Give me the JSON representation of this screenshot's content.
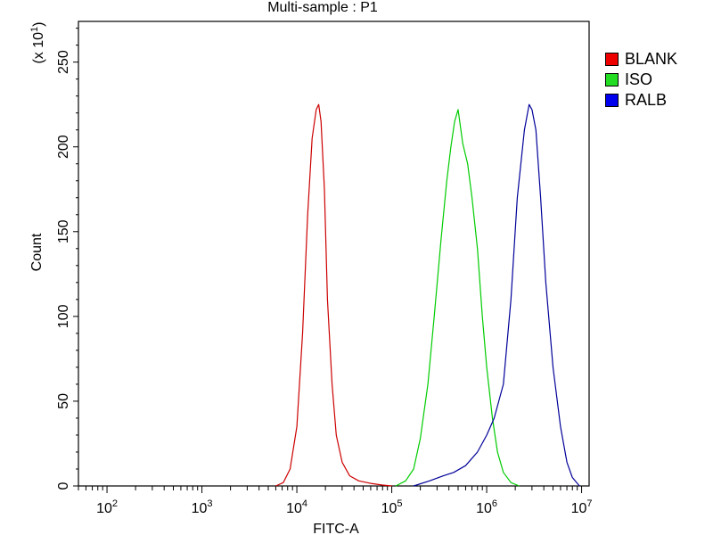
{
  "chart_data": {
    "type": "line",
    "title": "Multi-sample : P1",
    "xlabel": "FITC-A",
    "ylabel": "Count",
    "y_multiplier": "(x 10",
    "y_multiplier_exp": "1",
    "y_multiplier_end": ")",
    "x_scale": "log",
    "xlim": [
      50,
      12000000
    ],
    "ylim": [
      0,
      274
    ],
    "x_ticks": [
      {
        "value": 100,
        "base": "10",
        "exp": "2"
      },
      {
        "value": 1000,
        "base": "10",
        "exp": "3"
      },
      {
        "value": 10000,
        "base": "10",
        "exp": "4"
      },
      {
        "value": 100000,
        "base": "10",
        "exp": "5"
      },
      {
        "value": 1000000,
        "base": "10",
        "exp": "6"
      },
      {
        "value": 10000000,
        "base": "10",
        "exp": "7"
      }
    ],
    "y_ticks": [
      {
        "value": 0,
        "label": "0"
      },
      {
        "value": 50,
        "label": "50"
      },
      {
        "value": 100,
        "label": "100"
      },
      {
        "value": 150,
        "label": "150"
      },
      {
        "value": 200,
        "label": "200"
      },
      {
        "value": 250,
        "label": "250"
      }
    ],
    "grid": false,
    "legend_position": "top-right",
    "series": [
      {
        "name": "BLANK",
        "color": "#cc0000",
        "x": [
          6000,
          7200,
          8500,
          10000,
          11500,
          13000,
          14500,
          16000,
          17000,
          18000,
          19500,
          21000,
          23500,
          26000,
          30000,
          36000,
          45000,
          60000,
          80000,
          100000
        ],
        "y": [
          0,
          2,
          10,
          35,
          90,
          160,
          205,
          222,
          225,
          215,
          175,
          110,
          60,
          30,
          14,
          6,
          3,
          1.5,
          0.5,
          0
        ]
      },
      {
        "name": "ISO",
        "color": "#00cc00",
        "x": [
          110000,
          140000,
          170000,
          200000,
          240000,
          280000,
          330000,
          380000,
          420000,
          460000,
          500000,
          560000,
          630000,
          700000,
          800000,
          900000,
          1000000,
          1150000,
          1300000,
          1500000,
          1800000,
          2200000
        ],
        "y": [
          0,
          3,
          10,
          28,
          60,
          100,
          145,
          180,
          200,
          215,
          222,
          202,
          190,
          170,
          140,
          100,
          70,
          40,
          20,
          8,
          2,
          0
        ]
      },
      {
        "name": "RALB",
        "color": "#000099",
        "x": [
          170000,
          250000,
          350000,
          450000,
          600000,
          800000,
          1000000,
          1200000,
          1500000,
          1800000,
          2100000,
          2500000,
          2800000,
          3000000,
          3300000,
          3700000,
          4200000,
          5000000,
          6000000,
          7000000,
          8000000,
          9500000
        ],
        "y": [
          0,
          3,
          6,
          8,
          12,
          20,
          30,
          40,
          60,
          110,
          170,
          210,
          225,
          222,
          210,
          170,
          120,
          70,
          35,
          14,
          5,
          0
        ]
      }
    ]
  }
}
